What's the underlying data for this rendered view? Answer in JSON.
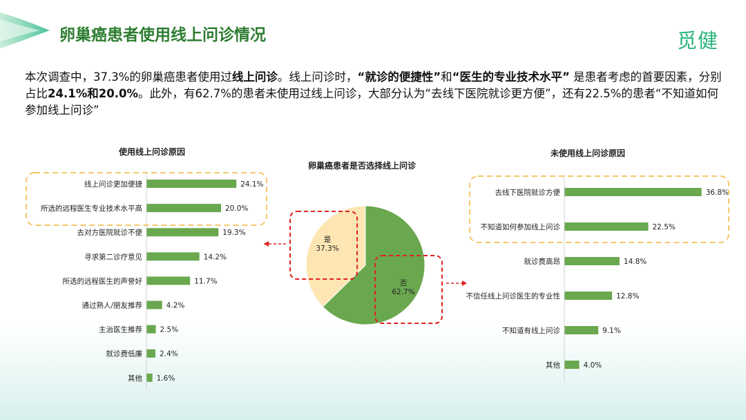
{
  "header": {
    "title": "卵巢癌患者使用线上问诊情况",
    "logo": "觅健"
  },
  "summary": {
    "s1": "本次调查中，37.3%的卵巢癌患者使用过",
    "b1": "线上问诊",
    "s2": "。线上问诊时，",
    "b2": "“就诊的便捷性”",
    "s3": "和",
    "b3": "“医生的专业技术水平”",
    "s4": " 是患者考虑的首要因素，分别占比",
    "b4": "24.1%和20.0%",
    "s5": "。此外，有62.7%的患者未使用过线上问诊，大部分认为“去线下医院就诊更方便”，还有22.5%的患者“不知道如何参加线上问诊”"
  },
  "colors": {
    "bar": "#6aa84f",
    "pie_no": "#6aa84f",
    "pie_yes": "#fde6b3",
    "highlight_yellow": "#f4c86a",
    "highlight_red": "#e02020",
    "title_green": "#2e7d32",
    "logo_green": "#27b57a"
  },
  "chart_data": [
    {
      "type": "bar",
      "orientation": "horizontal",
      "title": "使用线上问诊原因",
      "categories": [
        "线上问诊更加便捷",
        "所选的远程医生专业技术水平高",
        "去对方医院就诊不便",
        "寻求第二诊疗意见",
        "所选的远程医生的声誉好",
        "通过熟人/朋友推荐",
        "主治医生推荐",
        "就诊费低廉",
        "其他"
      ],
      "values": [
        24.1,
        20.0,
        19.3,
        14.2,
        11.7,
        4.2,
        2.5,
        2.4,
        1.6
      ],
      "value_labels": [
        "24.1%",
        "20.0%",
        "19.3%",
        "14.2%",
        "11.7%",
        "4.2%",
        "2.5%",
        "2.4%",
        "1.6%"
      ]
    },
    {
      "type": "pie",
      "title": "卵巢癌患者是否选择线上问诊",
      "categories": [
        "是",
        "否"
      ],
      "values": [
        37.3,
        62.7
      ],
      "value_labels": [
        "37.3%",
        "62.7%"
      ]
    },
    {
      "type": "bar",
      "orientation": "horizontal",
      "title": "未使用线上问诊原因",
      "categories": [
        "去线下医院就诊方便",
        "不知道如何参加线上问诊",
        "就诊费高昂",
        "不信任线上问诊医生的专业性",
        "不知道有线上问诊",
        "其他"
      ],
      "values": [
        36.8,
        22.5,
        14.8,
        12.8,
        9.1,
        4.0
      ],
      "value_labels": [
        "36.8%",
        "22.5%",
        "14.8%",
        "12.8%",
        "9.1%",
        "4.0%"
      ]
    }
  ]
}
